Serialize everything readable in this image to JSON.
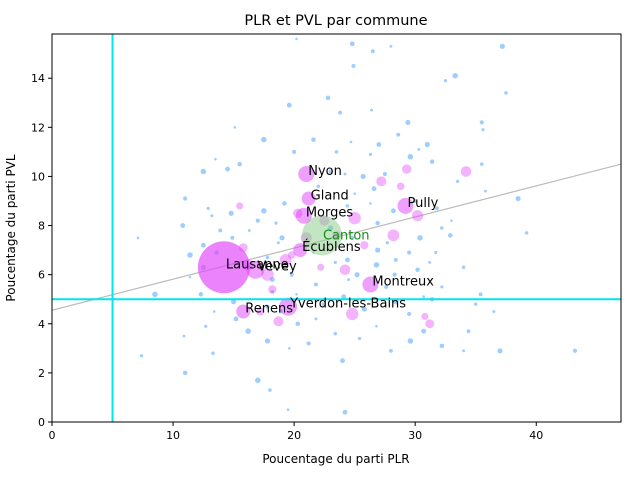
{
  "chart_data": {
    "type": "scatter",
    "title": "PLR et PVL par commune",
    "xlabel": "Poucentage du parti PLR",
    "ylabel": "Poucentage du parti PVL",
    "xlim": [
      0,
      47
    ],
    "ylim": [
      0,
      15.8
    ],
    "xticks": [
      0,
      10,
      20,
      30,
      40
    ],
    "yticks": [
      0,
      2,
      4,
      6,
      8,
      10,
      12,
      14
    ],
    "grid": false,
    "threshold_lines": {
      "x": 5,
      "y": 5,
      "color": "#00e5ee"
    },
    "trend_line": {
      "x": [
        0,
        47
      ],
      "y": [
        4.55,
        10.5
      ],
      "color": "#bbbbbb"
    },
    "colors": {
      "small": "#4da6ff",
      "large": "#e040fb",
      "canton": "#8fcf8f",
      "canton_text": "#1a8a1a"
    },
    "labeled_points": [
      {
        "name": "Lausanne",
        "x": 14.2,
        "y": 6.3,
        "size": 26
      },
      {
        "name": "Vevey",
        "x": 16.8,
        "y": 6.2,
        "size": 9
      },
      {
        "name": "Renens",
        "x": 15.8,
        "y": 4.5,
        "size": 7
      },
      {
        "name": "Yverdon-les-Bains",
        "x": 19.5,
        "y": 4.7,
        "size": 9
      },
      {
        "name": "Nyon",
        "x": 21.0,
        "y": 10.1,
        "size": 8
      },
      {
        "name": "Gland",
        "x": 21.2,
        "y": 9.1,
        "size": 7
      },
      {
        "name": "Morges",
        "x": 20.8,
        "y": 8.4,
        "size": 8
      },
      {
        "name": "Écublens",
        "x": 20.5,
        "y": 7.0,
        "size": 7
      },
      {
        "name": "Pully",
        "x": 29.2,
        "y": 8.8,
        "size": 8
      },
      {
        "name": "Montreux",
        "x": 26.3,
        "y": 5.6,
        "size": 8
      }
    ],
    "canton": {
      "name": "Canton",
      "x": 22.3,
      "y": 7.6,
      "size": 20
    },
    "medium_points": [
      [
        15.5,
        8.8
      ],
      [
        15.8,
        7.1
      ],
      [
        16.2,
        6.4
      ],
      [
        17.8,
        6.0
      ],
      [
        18.2,
        5.4
      ],
      [
        18.7,
        4.1
      ],
      [
        19.3,
        6.6
      ],
      [
        19.8,
        6.8
      ],
      [
        20.3,
        8.5
      ],
      [
        21.0,
        7.5
      ],
      [
        22.2,
        6.3
      ],
      [
        23.5,
        7.6
      ],
      [
        24.2,
        6.2
      ],
      [
        25.0,
        8.3
      ],
      [
        25.8,
        7.2
      ],
      [
        27.2,
        9.8
      ],
      [
        28.2,
        7.6
      ],
      [
        28.8,
        9.6
      ],
      [
        29.3,
        10.3
      ],
      [
        30.2,
        8.4
      ],
      [
        30.8,
        4.3
      ],
      [
        31.2,
        4.0
      ],
      [
        34.2,
        10.2
      ],
      [
        24.8,
        4.4
      ],
      [
        17.2,
        4.5
      ],
      [
        22.5,
        8.2
      ]
    ],
    "small_points": [
      [
        20.2,
        15.6
      ],
      [
        24.8,
        15.4
      ],
      [
        26.5,
        15.1
      ],
      [
        28.0,
        15.3
      ],
      [
        37.2,
        15.3
      ],
      [
        24.9,
        14.5
      ],
      [
        32.5,
        13.9
      ],
      [
        33.3,
        14.1
      ],
      [
        22.8,
        13.2
      ],
      [
        37.5,
        13.4
      ],
      [
        15.1,
        12.0
      ],
      [
        19.6,
        12.9
      ],
      [
        23.8,
        12.6
      ],
      [
        26.4,
        12.7
      ],
      [
        29.4,
        12.2
      ],
      [
        35.5,
        12.2
      ],
      [
        35.6,
        11.9
      ],
      [
        17.5,
        11.5
      ],
      [
        21.6,
        11.5
      ],
      [
        23.5,
        11.0
      ],
      [
        24.7,
        11.4
      ],
      [
        27.0,
        11.3
      ],
      [
        28.6,
        11.7
      ],
      [
        30.3,
        11.1
      ],
      [
        31.0,
        11.3
      ],
      [
        20.0,
        11.0
      ],
      [
        26.3,
        10.9
      ],
      [
        29.6,
        10.8
      ],
      [
        31.4,
        10.6
      ],
      [
        35.5,
        10.5
      ],
      [
        13.5,
        10.7
      ],
      [
        14.5,
        10.3
      ],
      [
        23.0,
        10.2
      ],
      [
        24.2,
        10.1
      ],
      [
        25.7,
        10.0
      ],
      [
        27.5,
        10.1
      ],
      [
        33.5,
        9.8
      ],
      [
        12.5,
        10.2
      ],
      [
        15.5,
        10.5
      ],
      [
        22.0,
        9.6
      ],
      [
        25.0,
        9.3
      ],
      [
        26.6,
        9.5
      ],
      [
        30.0,
        9.0
      ],
      [
        35.8,
        9.4
      ],
      [
        38.5,
        9.1
      ],
      [
        11.0,
        9.1
      ],
      [
        12.9,
        8.7
      ],
      [
        17.5,
        8.6
      ],
      [
        19.2,
        8.9
      ],
      [
        24.4,
        8.8
      ],
      [
        26.3,
        8.9
      ],
      [
        28.2,
        8.6
      ],
      [
        31.8,
        8.7
      ],
      [
        13.2,
        8.4
      ],
      [
        14.8,
        8.5
      ],
      [
        17.0,
        8.2
      ],
      [
        18.5,
        8.1
      ],
      [
        23.0,
        7.9
      ],
      [
        26.9,
        8.1
      ],
      [
        32.2,
        7.9
      ],
      [
        33.0,
        8.2
      ],
      [
        10.8,
        8.0
      ],
      [
        13.9,
        7.8
      ],
      [
        16.3,
        7.8
      ],
      [
        19.0,
        7.5
      ],
      [
        24.8,
        7.5
      ],
      [
        27.7,
        7.3
      ],
      [
        30.4,
        7.5
      ],
      [
        32.9,
        7.6
      ],
      [
        39.2,
        7.7
      ],
      [
        7.1,
        7.5
      ],
      [
        12.5,
        7.2
      ],
      [
        14.9,
        7.5
      ],
      [
        18.7,
        7.3
      ],
      [
        26.9,
        7.0
      ],
      [
        29.5,
        6.9
      ],
      [
        31.7,
        6.9
      ],
      [
        11.4,
        6.8
      ],
      [
        13.6,
        6.9
      ],
      [
        17.8,
        6.7
      ],
      [
        21.6,
        6.9
      ],
      [
        24.4,
        6.6
      ],
      [
        28.4,
        6.6
      ],
      [
        31.2,
        6.5
      ],
      [
        12.5,
        6.3
      ],
      [
        19.8,
        6.0
      ],
      [
        23.4,
        6.5
      ],
      [
        26.8,
        6.4
      ],
      [
        30.2,
        6.2
      ],
      [
        34.0,
        6.3
      ],
      [
        11.4,
        5.9
      ],
      [
        18.2,
        5.8
      ],
      [
        21.8,
        5.6
      ],
      [
        24.5,
        5.8
      ],
      [
        25.2,
        6.0
      ],
      [
        28.3,
        6.0
      ],
      [
        32.2,
        5.5
      ],
      [
        8.5,
        5.2
      ],
      [
        12.3,
        5.2
      ],
      [
        18.2,
        5.3
      ],
      [
        20.2,
        5.2
      ],
      [
        24.1,
        5.1
      ],
      [
        27.6,
        5.5
      ],
      [
        30.7,
        5.1
      ],
      [
        15.0,
        4.9
      ],
      [
        17.8,
        4.7
      ],
      [
        22.4,
        4.8
      ],
      [
        28.4,
        4.9
      ],
      [
        31.4,
        5.0
      ],
      [
        35.0,
        4.8
      ],
      [
        13.4,
        4.5
      ],
      [
        15.2,
        4.2
      ],
      [
        18.9,
        4.5
      ],
      [
        21.8,
        4.2
      ],
      [
        25.8,
        4.6
      ],
      [
        29.5,
        4.4
      ],
      [
        12.7,
        3.9
      ],
      [
        16.2,
        3.7
      ],
      [
        20.3,
        4.0
      ],
      [
        23.4,
        3.6
      ],
      [
        26.8,
        3.9
      ],
      [
        30.7,
        3.7
      ],
      [
        34.4,
        3.7
      ],
      [
        10.9,
        3.5
      ],
      [
        17.8,
        3.3
      ],
      [
        21.2,
        3.2
      ],
      [
        25.4,
        3.4
      ],
      [
        29.6,
        3.3
      ],
      [
        32.2,
        3.1
      ],
      [
        13.3,
        2.8
      ],
      [
        19.6,
        3.0
      ],
      [
        24.0,
        2.5
      ],
      [
        28.0,
        2.9
      ],
      [
        34.0,
        2.9
      ],
      [
        37.0,
        2.9
      ],
      [
        43.2,
        2.9
      ],
      [
        7.4,
        2.7
      ],
      [
        17.0,
        1.7
      ],
      [
        11.0,
        2.0
      ],
      [
        18.0,
        1.3
      ],
      [
        19.5,
        0.5
      ],
      [
        24.2,
        0.4
      ],
      [
        35.4,
        5.2
      ],
      [
        36.5,
        4.5
      ]
    ]
  }
}
